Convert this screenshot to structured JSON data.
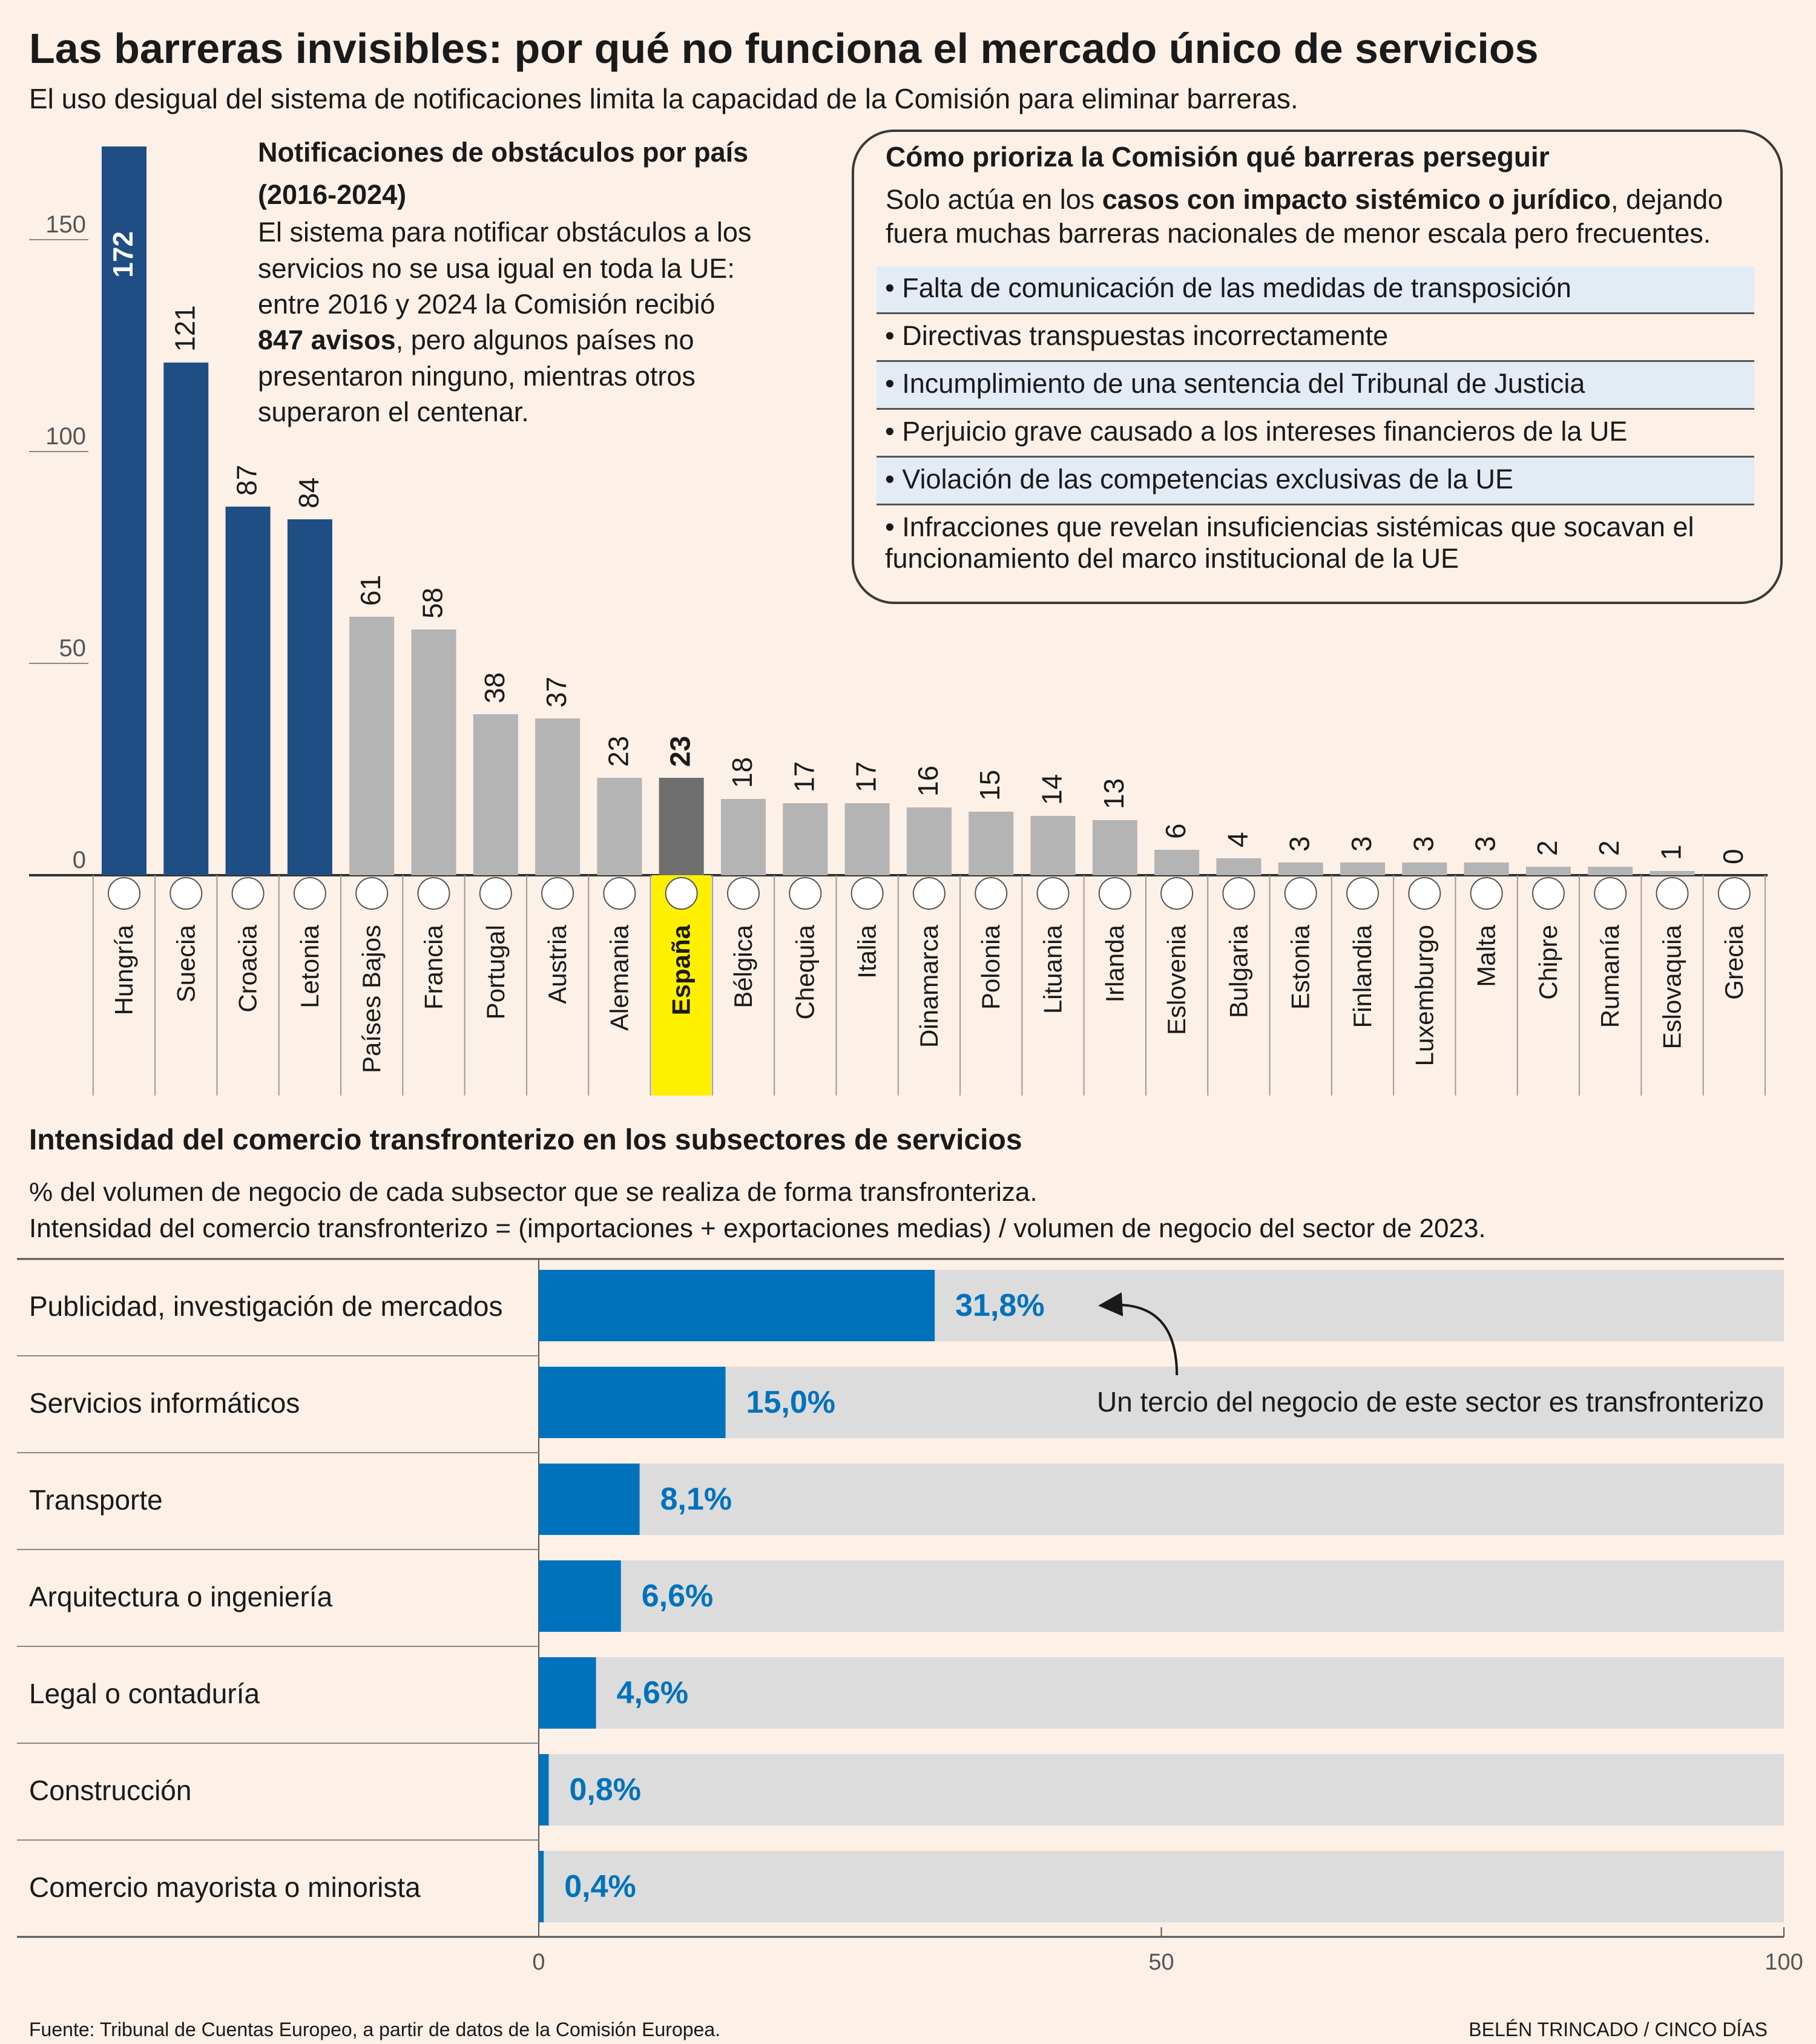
{
  "header": {
    "title": "Las barreras invisibles: por qué no funciona el mercado único de servicios",
    "subtitle": "El uso desigual del sistema de notificaciones limita la capacidad de la Comisión para eliminar barreras."
  },
  "note": {
    "title_line1": "Notificaciones de obstáculos por país",
    "title_line2": "(2016-2024)",
    "line1": "El sistema para notificar obstáculos a los",
    "line2": "servicios no se usa igual en toda la UE:",
    "line3": "entre 2016 y 2024 la Comisión recibió",
    "line4_bold": "847 avisos",
    "line4_rest": ", pero algunos países no",
    "line5": "presentaron ninguno, mientras otros",
    "line6": "superaron el centenar."
  },
  "infobox": {
    "title": "Cómo prioriza la Comisión qué barreras perseguir",
    "desc_pre": "Solo actúa en los ",
    "desc_bold": "casos con impacto sistémico o jurídico",
    "desc_post": ", dejando fuera muchas barreras nacionales de menor escala pero frecuentes.",
    "criteria": [
      "• Falta de comunicación de las medidas de transposición",
      "• Directivas transpuestas incorrectamente",
      "• Incumplimiento de una sentencia del Tribunal de Justicia",
      "• Perjuicio grave causado a los intereses financieros de la UE",
      "• Violación de las competencias exclusivas de la UE",
      "• Infracciones que revelan insuficiencias sistémicas que socavan el funcionamiento del marco institucional de la UE"
    ]
  },
  "section2": {
    "title": "Intensidad del comercio transfronterizo en los subsectores de servicios",
    "sub1": "% del volumen de negocio de cada subsector que se realiza de forma transfronteriza.",
    "sub2": "Intensidad del comercio transfronterizo = (importaciones + exportaciones medias) / volumen de negocio del sector de 2023."
  },
  "footer": {
    "source": "Fuente: Tribunal de Cuentas Europeo, a partir de datos de la Comisión Europea.",
    "credit": "BELÉN TRINCADO / CINCO DÍAS"
  },
  "colors": {
    "background": "#fcf0e7",
    "dark_blue": "#1f4e85",
    "gray_bar": "#b4b4b4",
    "spain_bar": "#6e6e6e",
    "highlight": "#fff000",
    "bright_blue": "#0072bc",
    "track": "#dcdcdc"
  },
  "chart_data": [
    {
      "type": "bar",
      "title": "Notificaciones de obstáculos por país (2016-2024)",
      "ylim": [
        0,
        172
      ],
      "yticks": [
        "0",
        "50",
        "100",
        "150"
      ],
      "categories": [
        "Hungría",
        "Suecia",
        "Croacia",
        "Letonia",
        "Países Bajos",
        "Francia",
        "Portugal",
        "Austria",
        "Alemania",
        "España",
        "Bélgica",
        "Chequia",
        "Italia",
        "Dinamarca",
        "Polonia",
        "Lituania",
        "Irlanda",
        "Eslovenia",
        "Bulgaria",
        "Estonia",
        "Finlandia",
        "Luxemburgo",
        "Malta",
        "Chipre",
        "Rumanía",
        "Eslovaquia",
        "Grecia"
      ],
      "values": [
        172,
        121,
        87,
        84,
        61,
        58,
        38,
        37,
        23,
        23,
        18,
        17,
        17,
        16,
        15,
        14,
        13,
        6,
        4,
        3,
        3,
        3,
        3,
        2,
        2,
        1,
        0
      ],
      "value_labels": [
        "172",
        "121",
        "87",
        "84",
        "61",
        "58",
        "38",
        "37",
        "23",
        "23",
        "18",
        "17",
        "17",
        "16",
        "15",
        "14",
        "13",
        "6",
        "4",
        "3",
        "3",
        "3",
        "3",
        "2",
        "2",
        "1",
        "0"
      ],
      "highlighted": "España",
      "top_group_count": 4
    },
    {
      "type": "bar",
      "orientation": "horizontal",
      "title": "Intensidad del comercio transfronterizo en los subsectores de servicios",
      "xlim": [
        0,
        100
      ],
      "xticks": [
        "0",
        "50",
        "100"
      ],
      "categories": [
        "Publicidad, investigación de mercados",
        "Servicios informáticos",
        "Transporte",
        "Arquitectura o ingeniería",
        "Legal o contaduría",
        "Construcción",
        "Comercio mayorista o minorista"
      ],
      "values": [
        31.8,
        15.0,
        8.1,
        6.6,
        4.6,
        0.8,
        0.4
      ],
      "value_labels": [
        "31,8%",
        "15,0%",
        "8,1%",
        "6,6%",
        "4,6%",
        "0,8%",
        "0,4%"
      ],
      "annotation": "Un tercio del negocio de este sector es transfronterizo"
    }
  ]
}
